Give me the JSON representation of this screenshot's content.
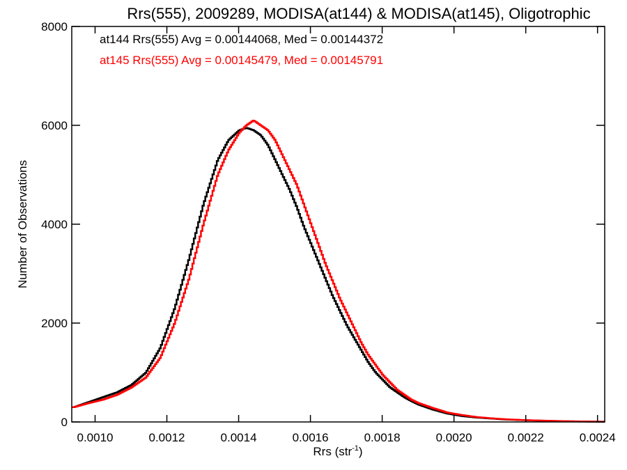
{
  "chart_data": {
    "type": "line",
    "step": true,
    "title": "Rrs(555), 2009289, MODISA(at144) & MODISA(at145), Oligotrophic",
    "xlabel": "Rrs (str",
    "xlabel_sup": "-1",
    "xlabel_close": ")",
    "ylabel": "Number of Observations",
    "xlim": [
      0.000935,
      0.00242
    ],
    "ylim": [
      0,
      8000
    ],
    "x_ticks": [
      0.001,
      0.0012,
      0.0014,
      0.0016,
      0.0018,
      0.002,
      0.0022,
      0.0024
    ],
    "x_tick_labels": [
      "0.0010",
      "0.0012",
      "0.0014",
      "0.0016",
      "0.0018",
      "0.0020",
      "0.0022",
      "0.0024"
    ],
    "y_ticks": [
      0,
      2000,
      4000,
      6000,
      8000
    ],
    "y_tick_labels": [
      "0",
      "2000",
      "4000",
      "6000",
      "8000"
    ],
    "grid": false,
    "legend_position": "top-left",
    "series": [
      {
        "name": "at144 Rrs(555) Avg = 0.00144068, Med = 0.00144372",
        "color": "#000000",
        "x": [
          0.00094,
          0.00098,
          0.00102,
          0.00106,
          0.0011,
          0.00114,
          0.00118,
          0.00122,
          0.00126,
          0.0013,
          0.00134,
          0.00137,
          0.0014,
          0.00142,
          0.00144,
          0.00146,
          0.00148,
          0.0015,
          0.00152,
          0.00154,
          0.00156,
          0.00158,
          0.0016,
          0.00162,
          0.00164,
          0.00166,
          0.00168,
          0.0017,
          0.00172,
          0.00174,
          0.00176,
          0.00178,
          0.0018,
          0.00182,
          0.00184,
          0.00186,
          0.00188,
          0.0019,
          0.00194,
          0.00198,
          0.00202,
          0.00206,
          0.0021,
          0.00214,
          0.00218,
          0.00222,
          0.00226,
          0.0023,
          0.00234,
          0.00238,
          0.00242
        ],
        "y": [
          300,
          400,
          500,
          600,
          750,
          1000,
          1500,
          2300,
          3300,
          4400,
          5300,
          5700,
          5900,
          5950,
          5900,
          5800,
          5600,
          5300,
          5000,
          4700,
          4350,
          3950,
          3600,
          3250,
          2900,
          2550,
          2250,
          1950,
          1700,
          1450,
          1200,
          1000,
          850,
          700,
          600,
          500,
          420,
          350,
          250,
          170,
          120,
          90,
          70,
          50,
          40,
          30,
          22,
          15,
          10,
          7,
          5
        ]
      },
      {
        "name": "at145 Rrs(555) Avg = 0.00145479, Med = 0.00145791",
        "color": "#ff0000",
        "x": [
          0.00094,
          0.00098,
          0.00102,
          0.00106,
          0.0011,
          0.00114,
          0.00118,
          0.00122,
          0.00126,
          0.0013,
          0.00134,
          0.00137,
          0.0014,
          0.00142,
          0.00144,
          0.00146,
          0.00148,
          0.0015,
          0.00152,
          0.00154,
          0.00156,
          0.00158,
          0.0016,
          0.00162,
          0.00164,
          0.00166,
          0.00168,
          0.0017,
          0.00172,
          0.00174,
          0.00176,
          0.00178,
          0.0018,
          0.00182,
          0.00184,
          0.00186,
          0.00188,
          0.0019,
          0.00194,
          0.00198,
          0.00202,
          0.00206,
          0.0021,
          0.00214,
          0.00218,
          0.00222,
          0.00226,
          0.0023,
          0.00234,
          0.00238,
          0.00242
        ],
        "y": [
          300,
          380,
          450,
          550,
          700,
          900,
          1300,
          2000,
          2900,
          4000,
          5000,
          5500,
          5850,
          6000,
          6100,
          6000,
          5900,
          5700,
          5400,
          5100,
          4800,
          4400,
          4000,
          3600,
          3200,
          2850,
          2500,
          2200,
          1900,
          1600,
          1350,
          1150,
          950,
          800,
          650,
          550,
          450,
          380,
          280,
          190,
          140,
          100,
          75,
          55,
          42,
          32,
          24,
          17,
          12,
          8,
          5
        ]
      }
    ]
  }
}
